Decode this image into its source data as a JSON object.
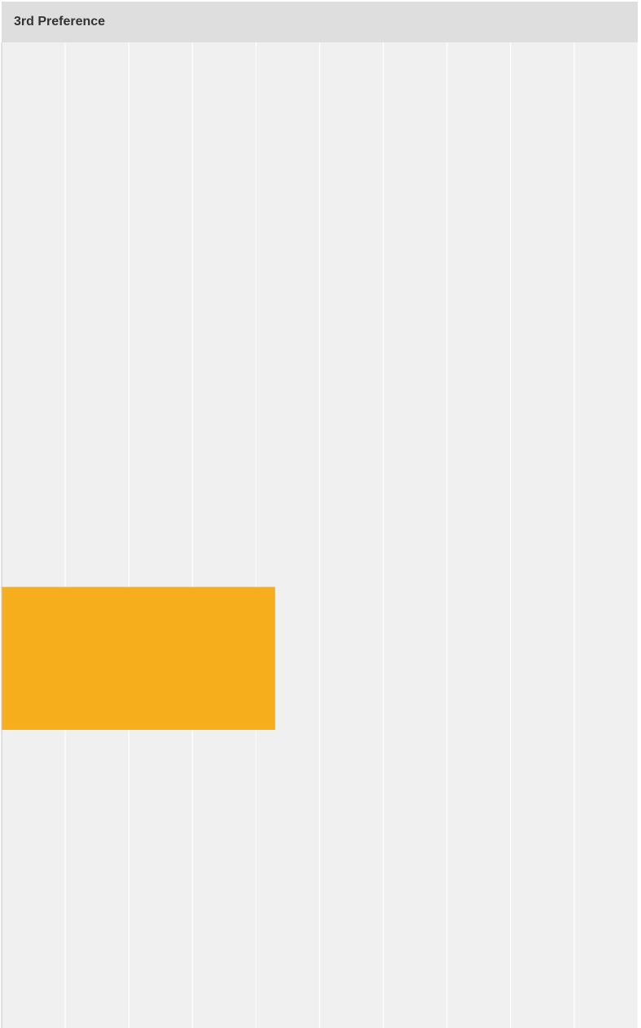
{
  "chart_data": {
    "type": "bar",
    "orientation": "horizontal",
    "title": "3rd Preference",
    "categories": [
      null,
      null,
      null,
      null
    ],
    "values": [
      null,
      null,
      4.3,
      null
    ],
    "color": "#f7ae1d",
    "xlim": [
      0,
      10
    ],
    "xticks": [
      0,
      1,
      2,
      3,
      4,
      5,
      6,
      7,
      8,
      9,
      10
    ],
    "grid": true
  }
}
